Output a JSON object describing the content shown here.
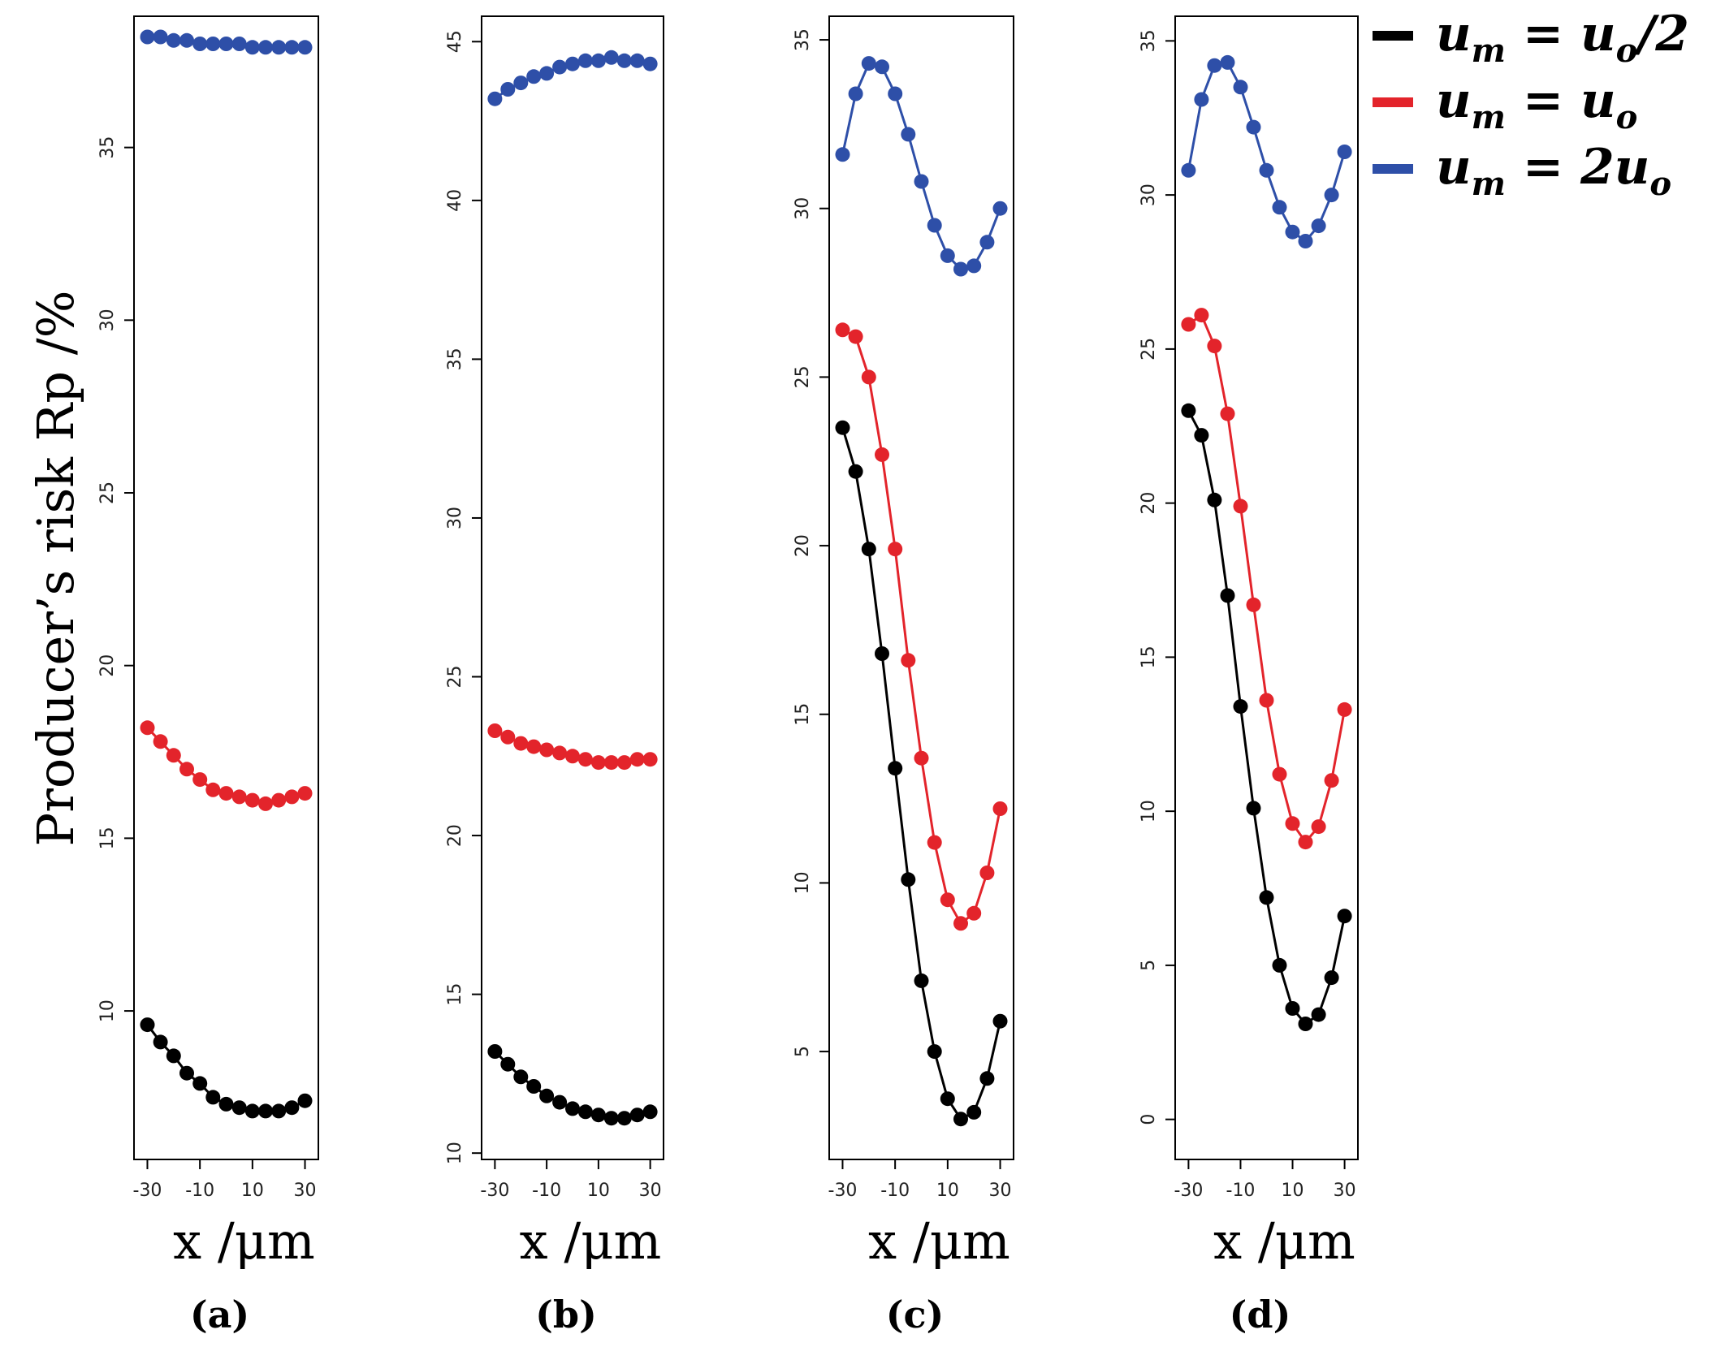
{
  "figure": {
    "ylabel": "Producer’s risk Rp /%"
  },
  "legend": {
    "entries": [
      {
        "lhs": "u",
        "lhs_sub": "m",
        "op": " = ",
        "rhs": "u",
        "rhs_sub": "o",
        "rhs_tail": "/2",
        "color": "#000000"
      },
      {
        "lhs": "u",
        "lhs_sub": "m",
        "op": " = ",
        "rhs": "u",
        "rhs_sub": "o",
        "rhs_tail": "",
        "color": "#e3242b"
      },
      {
        "lhs": "u",
        "lhs_sub": "m",
        "op": " = ",
        "rhs": "2u",
        "rhs_sub": "o",
        "rhs_tail": "",
        "color": "#2e4fa8"
      }
    ]
  },
  "chart_data": [
    {
      "type": "line",
      "panel_label": "(a)",
      "xlabel": "x /μm",
      "xticks": [
        -30,
        -10,
        10,
        30
      ],
      "yticks": [
        10,
        15,
        20,
        25,
        30,
        35
      ],
      "xlim": [
        -32,
        32
      ],
      "ylim": [
        5.7,
        38.8
      ],
      "x": [
        -30,
        -25,
        -20,
        -15,
        -10,
        -5,
        0,
        5,
        10,
        15,
        20,
        25,
        30
      ],
      "series": [
        {
          "color": "#000000",
          "values": [
            9.6,
            9.1,
            8.7,
            8.2,
            7.9,
            7.5,
            7.3,
            7.2,
            7.1,
            7.1,
            7.1,
            7.2,
            7.4
          ]
        },
        {
          "color": "#e3242b",
          "values": [
            18.2,
            17.8,
            17.4,
            17.0,
            16.7,
            16.4,
            16.3,
            16.2,
            16.1,
            16.0,
            16.1,
            16.2,
            16.3
          ]
        },
        {
          "color": "#2e4fa8",
          "values": [
            38.2,
            38.2,
            38.1,
            38.1,
            38.0,
            38.0,
            38.0,
            38.0,
            37.9,
            37.9,
            37.9,
            37.9,
            37.9
          ]
        }
      ]
    },
    {
      "type": "line",
      "panel_label": "(b)",
      "xlabel": "x /μm",
      "xticks": [
        -30,
        -10,
        10,
        30
      ],
      "yticks": [
        10,
        15,
        20,
        25,
        30,
        35,
        40,
        45
      ],
      "xlim": [
        -32,
        32
      ],
      "ylim": [
        9.8,
        45.8
      ],
      "x": [
        -30,
        -25,
        -20,
        -15,
        -10,
        -5,
        0,
        5,
        10,
        15,
        20,
        25,
        30
      ],
      "series": [
        {
          "color": "#000000",
          "values": [
            13.2,
            12.8,
            12.4,
            12.1,
            11.8,
            11.6,
            11.4,
            11.3,
            11.2,
            11.1,
            11.1,
            11.2,
            11.3
          ]
        },
        {
          "color": "#e3242b",
          "values": [
            23.3,
            23.1,
            22.9,
            22.8,
            22.7,
            22.6,
            22.5,
            22.4,
            22.3,
            22.3,
            22.3,
            22.4,
            22.4
          ]
        },
        {
          "color": "#2e4fa8",
          "values": [
            43.2,
            43.5,
            43.7,
            43.9,
            44.0,
            44.2,
            44.3,
            44.4,
            44.4,
            44.5,
            44.4,
            44.4,
            44.3
          ]
        }
      ]
    },
    {
      "type": "line",
      "panel_label": "(c)",
      "xlabel": "x /μm",
      "xticks": [
        -30,
        -10,
        10,
        30
      ],
      "yticks": [
        5,
        10,
        15,
        20,
        25,
        30,
        35
      ],
      "xlim": [
        -32,
        32
      ],
      "ylim": [
        1.8,
        35.7
      ],
      "x": [
        -30,
        -25,
        -20,
        -15,
        -10,
        -5,
        0,
        5,
        10,
        15,
        20,
        25,
        30
      ],
      "series": [
        {
          "color": "#000000",
          "values": [
            23.5,
            22.2,
            19.9,
            16.8,
            13.4,
            10.1,
            7.1,
            5.0,
            3.6,
            3.0,
            3.2,
            4.2,
            5.9
          ]
        },
        {
          "color": "#e3242b",
          "values": [
            26.4,
            26.2,
            25.0,
            22.7,
            19.9,
            16.6,
            13.7,
            11.2,
            9.5,
            8.8,
            9.1,
            10.3,
            12.2
          ]
        },
        {
          "color": "#2e4fa8",
          "values": [
            31.6,
            33.4,
            34.3,
            34.2,
            33.4,
            32.2,
            30.8,
            29.5,
            28.6,
            28.2,
            28.3,
            29.0,
            30.0
          ]
        }
      ]
    },
    {
      "type": "line",
      "panel_label": "(d)",
      "xlabel": "x /μm",
      "xticks": [
        -30,
        -10,
        10,
        30
      ],
      "yticks": [
        0,
        5,
        10,
        15,
        20,
        25,
        30,
        35
      ],
      "xlim": [
        -32,
        32
      ],
      "ylim": [
        -1.3,
        35.8
      ],
      "x": [
        -30,
        -25,
        -20,
        -15,
        -10,
        -5,
        0,
        5,
        10,
        15,
        20,
        25,
        30
      ],
      "series": [
        {
          "color": "#000000",
          "values": [
            23.0,
            22.2,
            20.1,
            17.0,
            13.4,
            10.1,
            7.2,
            5.0,
            3.6,
            3.1,
            3.4,
            4.6,
            6.6
          ]
        },
        {
          "color": "#e3242b",
          "values": [
            25.8,
            26.1,
            25.1,
            22.9,
            19.9,
            16.7,
            13.6,
            11.2,
            9.6,
            9.0,
            9.5,
            11.0,
            13.3
          ]
        },
        {
          "color": "#2e4fa8",
          "values": [
            30.8,
            33.1,
            34.2,
            34.3,
            33.5,
            32.2,
            30.8,
            29.6,
            28.8,
            28.5,
            29.0,
            30.0,
            31.4
          ]
        }
      ]
    }
  ]
}
